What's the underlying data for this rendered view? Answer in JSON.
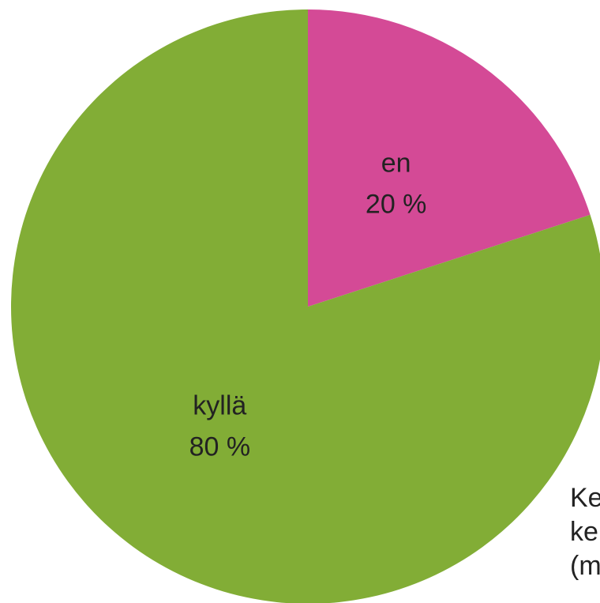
{
  "chart_data": {
    "type": "pie",
    "categories": [
      "en",
      "kyllä"
    ],
    "values": [
      20,
      80
    ],
    "value_labels": [
      "20 %",
      "80 %"
    ],
    "colors": [
      "#d44a96",
      "#82ad36"
    ],
    "annotation": [
      "Ke",
      "ke",
      "(m"
    ]
  }
}
